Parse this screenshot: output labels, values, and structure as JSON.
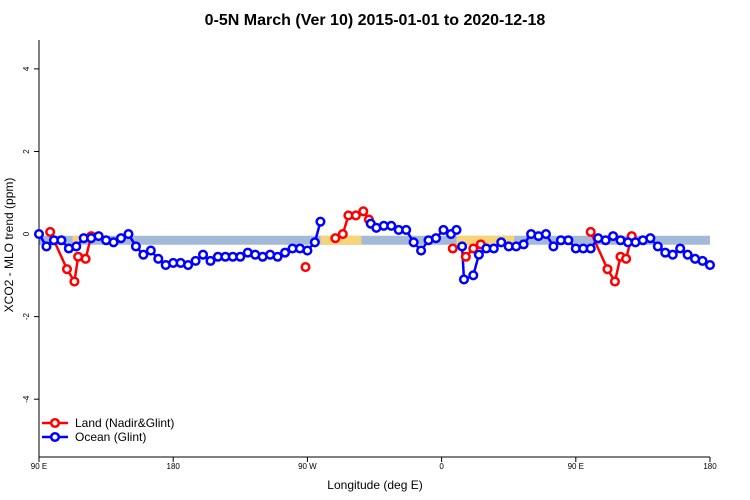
{
  "chart_data": {
    "type": "line",
    "title": "0-5N March (Ver 10)   2015-01-01 to 2020-12-18",
    "xlabel": "Longitude (deg E)",
    "ylabel": "XCO2 - MLO trend (ppm)",
    "xlim": [
      90,
      450
    ],
    "ylim": [
      -5.4,
      4.7
    ],
    "x_ticks": [
      {
        "value": 90,
        "label": "90 E"
      },
      {
        "value": 162,
        "label": "180"
      },
      {
        "value": 234,
        "label": "90 W"
      },
      {
        "value": 306,
        "label": "0"
      },
      {
        "value": 378,
        "label": "90 E"
      },
      {
        "value": 450,
        "label": "180"
      }
    ],
    "y_ticks": [
      {
        "value": -4,
        "label": "-4"
      },
      {
        "value": -2,
        "label": "-2"
      },
      {
        "value": 0,
        "label": "0"
      },
      {
        "value": 2,
        "label": "2"
      },
      {
        "value": 4,
        "label": "4"
      }
    ],
    "band": {
      "y": -0.15,
      "base_color": "#a3b9d6",
      "highlight_color": "#f7d47a",
      "highlight_ranges": [
        [
          108,
          112
        ],
        [
          241,
          263
        ],
        [
          314,
          345
        ],
        [
          406,
          410
        ]
      ]
    },
    "legend": {
      "position": "bottom-left",
      "entries": [
        {
          "label": "Land (Nadir&Glint)",
          "color": "#ff0000"
        },
        {
          "label": "Ocean (Glint)",
          "color": "#0000ff"
        }
      ]
    },
    "series": [
      {
        "name": "Land (Nadir&Glint)",
        "color": "#ff0000",
        "segments": [
          [
            [
              96,
              0.05
            ],
            [
              105,
              -0.85
            ],
            [
              109,
              -1.15
            ],
            [
              111,
              -0.55
            ],
            [
              115,
              -0.6
            ],
            [
              118,
              -0.05
            ]
          ],
          [
            [
              233,
              -0.8
            ]
          ],
          [
            [
              249,
              -0.1
            ],
            [
              253,
              0.0
            ],
            [
              256,
              0.45
            ],
            [
              260,
              0.45
            ],
            [
              264,
              0.55
            ],
            [
              267,
              0.35
            ]
          ],
          [
            [
              312,
              -0.35
            ]
          ],
          [
            [
              319,
              -0.55
            ],
            [
              323,
              -0.35
            ],
            [
              327,
              -0.25
            ]
          ],
          [
            [
              386,
              0.05
            ],
            [
              395,
              -0.85
            ],
            [
              399,
              -1.15
            ],
            [
              402,
              -0.55
            ],
            [
              405,
              -0.6
            ],
            [
              408,
              -0.05
            ]
          ]
        ]
      },
      {
        "name": "Ocean (Glint)",
        "color": "#0000ff",
        "segments": [
          [
            [
              90,
              0.0
            ],
            [
              94,
              -0.3
            ],
            [
              98,
              -0.15
            ],
            [
              102,
              -0.15
            ],
            [
              106,
              -0.35
            ],
            [
              110,
              -0.3
            ],
            [
              114,
              -0.1
            ],
            [
              118,
              -0.1
            ],
            [
              122,
              -0.05
            ],
            [
              126,
              -0.15
            ],
            [
              130,
              -0.2
            ],
            [
              134,
              -0.1
            ],
            [
              138,
              0.0
            ],
            [
              142,
              -0.3
            ],
            [
              146,
              -0.5
            ],
            [
              150,
              -0.4
            ],
            [
              154,
              -0.6
            ],
            [
              158,
              -0.75
            ],
            [
              162,
              -0.7
            ],
            [
              166,
              -0.7
            ],
            [
              170,
              -0.75
            ],
            [
              174,
              -0.65
            ],
            [
              178,
              -0.5
            ],
            [
              182,
              -0.65
            ],
            [
              186,
              -0.55
            ],
            [
              190,
              -0.55
            ],
            [
              194,
              -0.55
            ],
            [
              198,
              -0.55
            ],
            [
              202,
              -0.45
            ],
            [
              206,
              -0.5
            ],
            [
              210,
              -0.55
            ],
            [
              214,
              -0.5
            ],
            [
              218,
              -0.55
            ],
            [
              222,
              -0.45
            ],
            [
              226,
              -0.35
            ],
            [
              230,
              -0.35
            ],
            [
              234,
              -0.4
            ],
            [
              238,
              -0.2
            ],
            [
              241,
              0.3
            ]
          ],
          [
            [
              268,
              0.25
            ],
            [
              271,
              0.15
            ],
            [
              275,
              0.2
            ],
            [
              279,
              0.2
            ],
            [
              283,
              0.1
            ],
            [
              287,
              0.1
            ],
            [
              291,
              -0.2
            ],
            [
              295,
              -0.4
            ],
            [
              299,
              -0.15
            ],
            [
              303,
              -0.1
            ],
            [
              307,
              0.1
            ],
            [
              311,
              0.0
            ],
            [
              314,
              0.1
            ]
          ],
          [
            [
              317,
              -0.3
            ],
            [
              318,
              -1.1
            ],
            [
              323,
              -1.0
            ],
            [
              326,
              -0.5
            ],
            [
              330,
              -0.35
            ],
            [
              334,
              -0.35
            ],
            [
              338,
              -0.2
            ],
            [
              342,
              -0.3
            ],
            [
              346,
              -0.3
            ],
            [
              350,
              -0.25
            ],
            [
              354,
              0.0
            ],
            [
              358,
              -0.05
            ],
            [
              362,
              0.0
            ],
            [
              366,
              -0.3
            ],
            [
              370,
              -0.15
            ],
            [
              374,
              -0.15
            ],
            [
              378,
              -0.35
            ],
            [
              382,
              -0.35
            ],
            [
              386,
              -0.35
            ],
            [
              390,
              -0.1
            ],
            [
              394,
              -0.15
            ],
            [
              398,
              -0.05
            ],
            [
              402,
              -0.15
            ],
            [
              406,
              -0.2
            ],
            [
              410,
              -0.2
            ],
            [
              414,
              -0.15
            ],
            [
              418,
              -0.1
            ],
            [
              422,
              -0.3
            ],
            [
              426,
              -0.45
            ],
            [
              430,
              -0.5
            ],
            [
              434,
              -0.35
            ],
            [
              438,
              -0.5
            ],
            [
              442,
              -0.6
            ],
            [
              446,
              -0.65
            ],
            [
              450,
              -0.75
            ]
          ]
        ]
      }
    ]
  }
}
